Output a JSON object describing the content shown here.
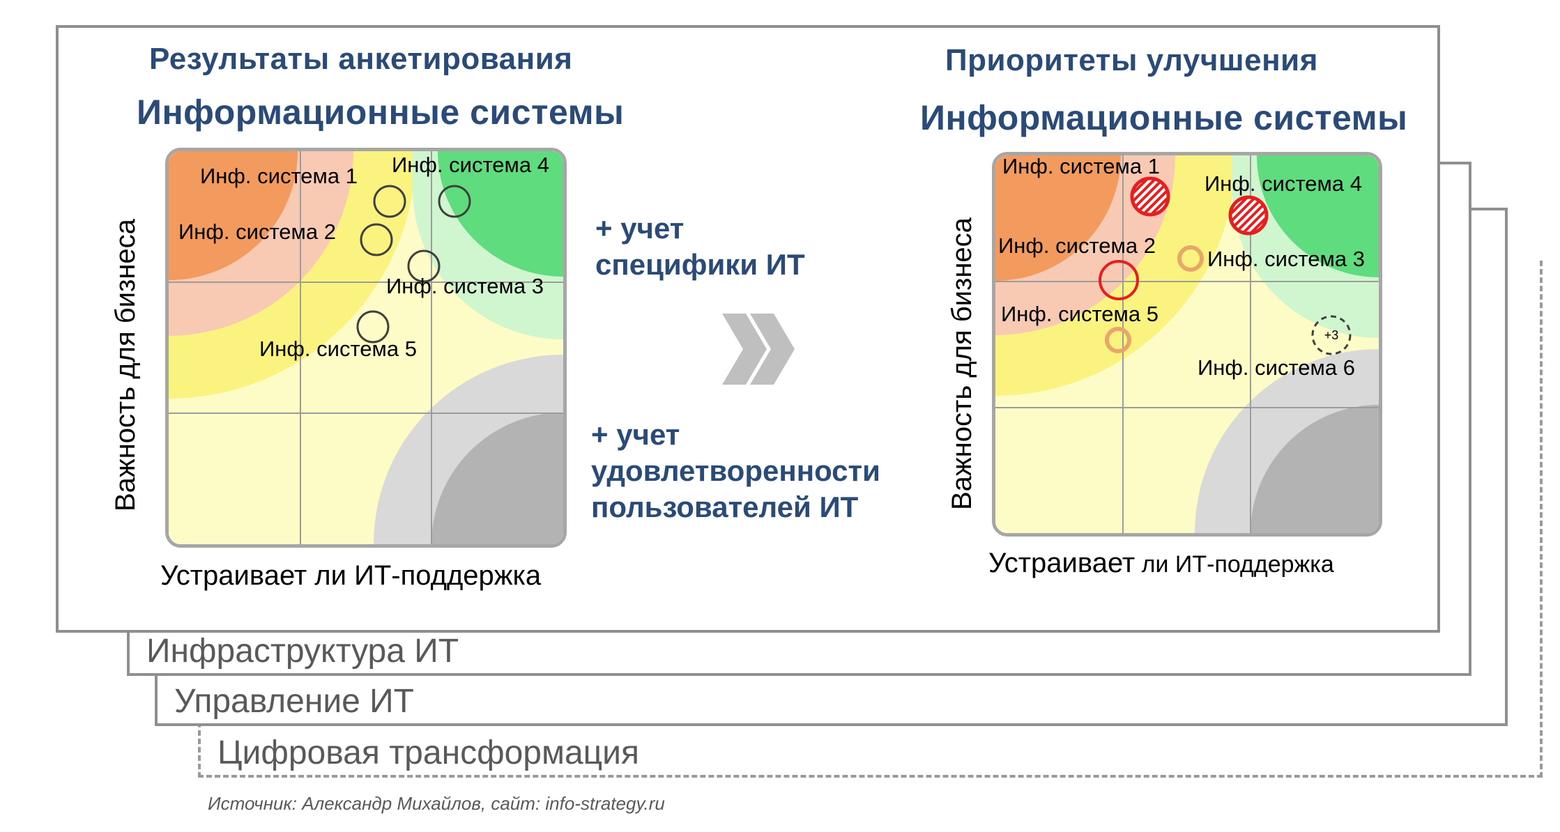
{
  "back_cards": {
    "infrastructure": "Инфраструктура ИТ",
    "management": "Управление ИТ",
    "digital": "Цифровая трансформация"
  },
  "left_panel": {
    "subtitle": "Результаты анкетирования",
    "title": "Информационные системы",
    "y_axis": "Важность  для бизнеса",
    "x_axis": "Устраивает ли ИТ-поддержка",
    "labels": {
      "sys1": "Инф. система 1",
      "sys2": "Инф. система 2",
      "sys3": "Инф. система 3",
      "sys4": "Инф. система 4",
      "sys5": "Инф. система 5"
    }
  },
  "middle": {
    "plus_it_line1": "+ учет",
    "plus_it_line2": "специфики ИТ",
    "plus_users_line1": "+ учет",
    "plus_users_line2": "удовлетворенности",
    "plus_users_line3": "пользователей ИТ"
  },
  "right_panel": {
    "subtitle": "Приоритеты улучшения",
    "title": "Информационные системы",
    "y_axis": "Важность  для бизнеса",
    "x_axis_part1": "Устраивает",
    "x_axis_part2": " ли ИТ-поддержка",
    "labels": {
      "sys1": "Инф. система 1",
      "sys2": "Инф. система 2",
      "sys3": "Инф. система 3",
      "sys4": "Инф. система 4",
      "sys5": "Инф. система 5",
      "sys6": "Инф. система 6",
      "more": "+3"
    }
  },
  "source": "Источник: Александр Михайлов, сайт: info-strategy.ru",
  "colors": {
    "title_blue": "#2a4a78",
    "orange": "#f39a5e",
    "salmon": "#f8c9b3",
    "yellow": "#fbf37f",
    "light_yellow": "#fdfbc6",
    "green": "#5fdc7e",
    "light_green": "#cff6cf",
    "gray": "#d9d9d9",
    "dark_gray": "#b3b3b3",
    "priority_red": "#e81e1e",
    "priority_orange": "#e9a66a"
  }
}
